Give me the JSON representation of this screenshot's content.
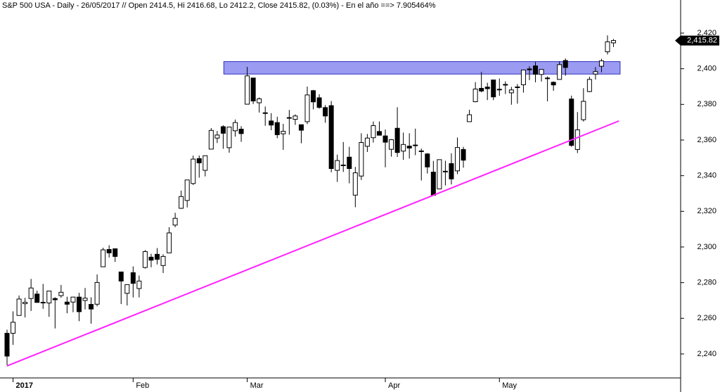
{
  "chart_data": {
    "type": "candlestick",
    "title": "S&P 500 USA - Daily - 26/05/2017 // Open 2414.5, Hi 2416.68, Lo 2412.2, Close 2415.82, (0.03%) - En el año ==> 7.905464%",
    "categories": [
      null,
      "2017",
      null,
      null,
      null,
      null,
      null,
      null,
      null,
      null,
      null,
      null,
      null,
      null,
      null,
      null,
      null,
      null,
      null,
      null,
      null,
      "Feb",
      null,
      null,
      null,
      null,
      null,
      null,
      null,
      null,
      null,
      null,
      null,
      null,
      null,
      null,
      null,
      null,
      null,
      null,
      "Mar",
      null,
      null,
      null,
      null,
      null,
      null,
      null,
      null,
      null,
      null,
      null,
      null,
      null,
      null,
      null,
      null,
      null,
      null,
      null,
      null,
      null,
      null,
      "Apr",
      null,
      null,
      null,
      null,
      null,
      null,
      null,
      null,
      null,
      null,
      null,
      null,
      null,
      null,
      null,
      null,
      null,
      null,
      "May",
      null,
      null,
      null,
      null,
      null,
      null,
      null,
      null,
      null,
      null,
      null,
      null,
      null,
      null,
      null,
      null,
      null,
      null,
      null
    ],
    "open": [
      2251.6,
      2251.6,
      2261.6,
      2268.2,
      2271.1,
      2273.6,
      2269.0,
      2268.6,
      2271.1,
      2272.7,
      2269.1,
      2269.1,
      2271.9,
      2270.0,
      2267.8,
      2267.9,
      2288.9,
      2298.6,
      2299.0,
      2286.0,
      2274.0,
      2285.6,
      2276.7,
      2288.5,
      2294.3,
      2295.9,
      2289.6,
      2296.7,
      2312.3,
      2321.7,
      2326.1,
      2335.6,
      2349.6,
      2343.0,
      2354.9,
      2361.1,
      2367.5,
      2355.7,
      2365.2,
      2366.1,
      2380.1,
      2394.8,
      2380.9,
      2375.2,
      2370.7,
      2369.8,
      2363.5,
      2372.5,
      2371.6,
      2368.6,
      2370.3,
      2387.7,
      2383.7,
      2378.2,
      2379.3,
      2343.0,
      2346.0,
      2350.4,
      2329.1,
      2339.8,
      2356.5,
      2361.3,
      2364.8,
      2362.3,
      2354.8,
      2366.6,
      2353.8,
      2356.6,
      2357.2,
      2353.9,
      2352.2,
      2342.0,
      2332.6,
      2342.5,
      2346.8,
      2342.7,
      2354.7,
      2370.3,
      2381.5,
      2389.0,
      2389.7,
      2393.7,
      2388.5,
      2391.1,
      2386.5,
      2389.8,
      2391.0,
      2399.9,
      2401.6,
      2396.8,
      2394.8,
      2392.4,
      2394.0,
      2404.6,
      2383.0,
      2354.7,
      2371.4,
      2387.2,
      2397.0,
      2401.4,
      2409.5,
      2414.5
    ],
    "high": [
      2253.6,
      2263.9,
      2272.8,
      2271.5,
      2282.1,
      2275.5,
      2279.3,
      2275.3,
      2271.8,
      2278.7,
      2272.1,
      2272.0,
      2274.3,
      2277.0,
      2271.8,
      2284.6,
      2299.6,
      2301.0,
      2299.0,
      2286.0,
      2279.1,
      2289.1,
      2284.0,
      2298.3,
      2296.2,
      2299.4,
      2295.9,
      2311.1,
      2319.2,
      2331.6,
      2337.6,
      2351.3,
      2351.3,
      2351.2,
      2366.7,
      2365.1,
      2368.3,
      2367.3,
      2371.5,
      2367.8,
      2401.0,
      2394.8,
      2383.9,
      2378.8,
      2375.1,
      2373.1,
      2369.1,
      2376.9,
      2374.4,
      2368.6,
      2390.0,
      2388.1,
      2385.7,
      2379.6,
      2381.9,
      2351.8,
      2358.9,
      2356.2,
      2344.9,
      2363.8,
      2363.4,
      2370.4,
      2370.4,
      2365.9,
      2360.5,
      2378.4,
      2364.2,
      2363.8,
      2366.4,
      2355.2,
      2352.7,
      2348.3,
      2349.1,
      2348.4,
      2352.6,
      2361.4,
      2356.2,
      2377.0,
      2392.5,
      2398.2,
      2392.1,
      2393.7,
      2394.5,
      2392.9,
      2389.8,
      2391.4,
      2399.3,
      2401.4,
      2403.9,
      2399.7,
      2395.7,
      2392.9,
      2404.1,
      2405.8,
      2384.9,
      2375.7,
      2389.1,
      2395.5,
      2400.9,
      2405.6,
      2418.7,
      2416.68
    ],
    "low": [
      2233.6,
      2245.1,
      2261.6,
      2260.5,
      2264.1,
      2268.8,
      2265.3,
      2260.8,
      2254.3,
      2271.5,
      2262.8,
      2263.4,
      2258.4,
      2265.0,
      2257.0,
      2266.7,
      2288.9,
      2294.1,
      2291.6,
      2268.0,
      2267.2,
      2271.7,
      2271.7,
      2287.9,
      2288.6,
      2290.2,
      2285.4,
      2296.6,
      2311.1,
      2321.4,
      2322.2,
      2334.8,
      2338.9,
      2339.6,
      2354.9,
      2358.3,
      2355.1,
      2352.9,
      2361.9,
      2359.0,
      2380.1,
      2380.2,
      2375.4,
      2368.0,
      2365.5,
      2361.0,
      2354.5,
      2363.0,
      2368.5,
      2358.2,
      2368.9,
      2377.2,
      2377.6,
      2369.7,
      2341.9,
      2336.5,
      2342.1,
      2335.7,
      2322.3,
      2337.6,
      2353.3,
      2358.6,
      2362.6,
      2344.7,
      2350.7,
      2350.5,
      2348.9,
      2349.6,
      2351.5,
      2337.3,
      2341.2,
      2329.0,
      2332.5,
      2334.5,
      2335.1,
      2340.9,
      2344.5,
      2370.3,
      2381.2,
      2386.8,
      2382.4,
      2382.4,
      2384.8,
      2385.8,
      2379.8,
      2380.4,
      2386.6,
      2393.6,
      2392.4,
      2392.8,
      2381.7,
      2387.6,
      2393.9,
      2396.1,
      2356.2,
      2352.7,
      2370.4,
      2386.9,
      2393.9,
      2398.0,
      2408.0,
      2412.2
    ],
    "close": [
      2238.8,
      2257.8,
      2270.8,
      2269.0,
      2277.0,
      2268.9,
      2268.9,
      2275.3,
      2270.4,
      2274.6,
      2267.9,
      2271.9,
      2263.7,
      2271.3,
      2265.2,
      2280.1,
      2298.4,
      2296.7,
      2294.7,
      2280.9,
      2278.9,
      2279.6,
      2280.9,
      2297.4,
      2292.6,
      2293.1,
      2294.7,
      2307.9,
      2316.1,
      2328.3,
      2337.6,
      2349.3,
      2347.2,
      2351.2,
      2365.4,
      2362.8,
      2363.8,
      2367.3,
      2369.8,
      2363.6,
      2396.0,
      2381.9,
      2383.1,
      2375.3,
      2368.4,
      2363.0,
      2364.9,
      2372.6,
      2373.5,
      2365.5,
      2385.3,
      2381.4,
      2378.3,
      2373.5,
      2344.0,
      2348.5,
      2346.0,
      2344.0,
      2341.6,
      2358.6,
      2361.1,
      2368.1,
      2362.7,
      2358.8,
      2360.2,
      2353.0,
      2357.5,
      2355.5,
      2357.2,
      2353.8,
      2344.9,
      2329.0,
      2349.0,
      2342.2,
      2338.2,
      2355.8,
      2348.7,
      2374.2,
      2388.6,
      2387.5,
      2388.8,
      2384.2,
      2388.3,
      2391.2,
      2388.1,
      2389.5,
      2399.3,
      2399.4,
      2396.9,
      2399.6,
      2394.4,
      2390.9,
      2402.3,
      2400.7,
      2357.0,
      2365.7,
      2381.7,
      2394.0,
      2398.4,
      2404.4,
      2415.1,
      2415.82
    ],
    "up_color": "#ffffff",
    "down_color": "#000000",
    "ylim": [
      2229,
      2427
    ],
    "yticks": [
      {
        "value": 2240,
        "label": "2,240"
      },
      {
        "value": 2260,
        "label": "2,260"
      },
      {
        "value": 2280,
        "label": "2,280"
      },
      {
        "value": 2300,
        "label": "2,300"
      },
      {
        "value": 2320,
        "label": "2,320"
      },
      {
        "value": 2340,
        "label": "2,340"
      },
      {
        "value": 2360,
        "label": "2,360"
      },
      {
        "value": 2380,
        "label": "2,380"
      },
      {
        "value": 2400,
        "label": "2,400"
      },
      {
        "value": 2420,
        "label": "2,420"
      }
    ],
    "last_price": {
      "value": 2415.82,
      "label": "2,415.82"
    },
    "zone": {
      "x": [
        36.1,
        102.1
      ],
      "y": [
        2397,
        2404
      ],
      "color": "#9b9bf2"
    },
    "trendline": {
      "x": [
        0,
        101.9
      ],
      "y": [
        2233.3,
        2370.7
      ],
      "color": "#ff22ff"
    }
  }
}
